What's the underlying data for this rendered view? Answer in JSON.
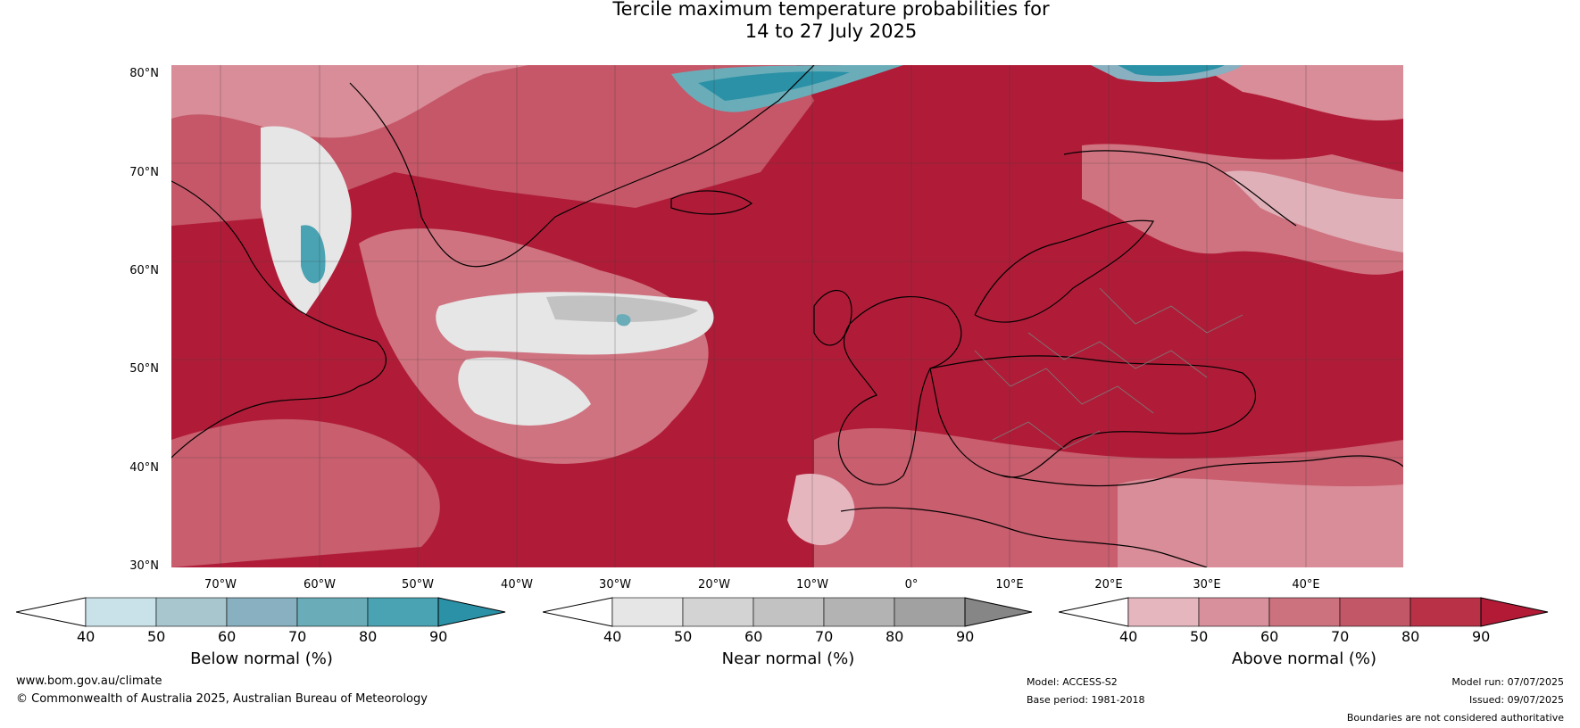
{
  "title_line1": "Tercile maximum temperature probabilities for",
  "title_line2": "14 to 27 July 2025",
  "lat_labels": [
    "80°N",
    "70°N",
    "60°N",
    "50°N",
    "40°N",
    "30°N"
  ],
  "lon_labels": [
    "70°W",
    "60°W",
    "50°W",
    "40°W",
    "30°W",
    "20°W",
    "10°W",
    "0°",
    "10°E",
    "20°E",
    "30°E",
    "40°E"
  ],
  "colorbars": [
    {
      "label": "Below normal (%)",
      "ticks": [
        "40",
        "50",
        "60",
        "70",
        "80",
        "90"
      ],
      "colors": [
        "#ffffff",
        "#c9e1e8",
        "#a7c6cd",
        "#88b0c0",
        "#6aadb9",
        "#4aa3b3",
        "#2a91a6"
      ]
    },
    {
      "label": "Near normal (%)",
      "ticks": [
        "40",
        "50",
        "60",
        "70",
        "80",
        "90"
      ],
      "colors": [
        "#ffffff",
        "#e6e6e6",
        "#d3d3d3",
        "#c2c2c2",
        "#b3b3b3",
        "#a1a1a1",
        "#868686"
      ]
    },
    {
      "label": "Above normal (%)",
      "ticks": [
        "40",
        "50",
        "60",
        "70",
        "80",
        "90"
      ],
      "colors": [
        "#ffffff",
        "#e6b6bf",
        "#d8909c",
        "#cb727e",
        "#c25767",
        "#b83146",
        "#b31a36"
      ]
    }
  ],
  "footer": {
    "website": "www.bom.gov.au/climate",
    "copyright": "© Commonwealth of Australia 2025, Australian Bureau of Meteorology",
    "model": "Model: ACCESS-S2",
    "base_period": "Base period: 1981-2018",
    "model_run": "Model run: 07/07/2025",
    "issued": "Issued: 09/07/2025",
    "disclaimer": "Boundaries are not considered authoritative"
  }
}
